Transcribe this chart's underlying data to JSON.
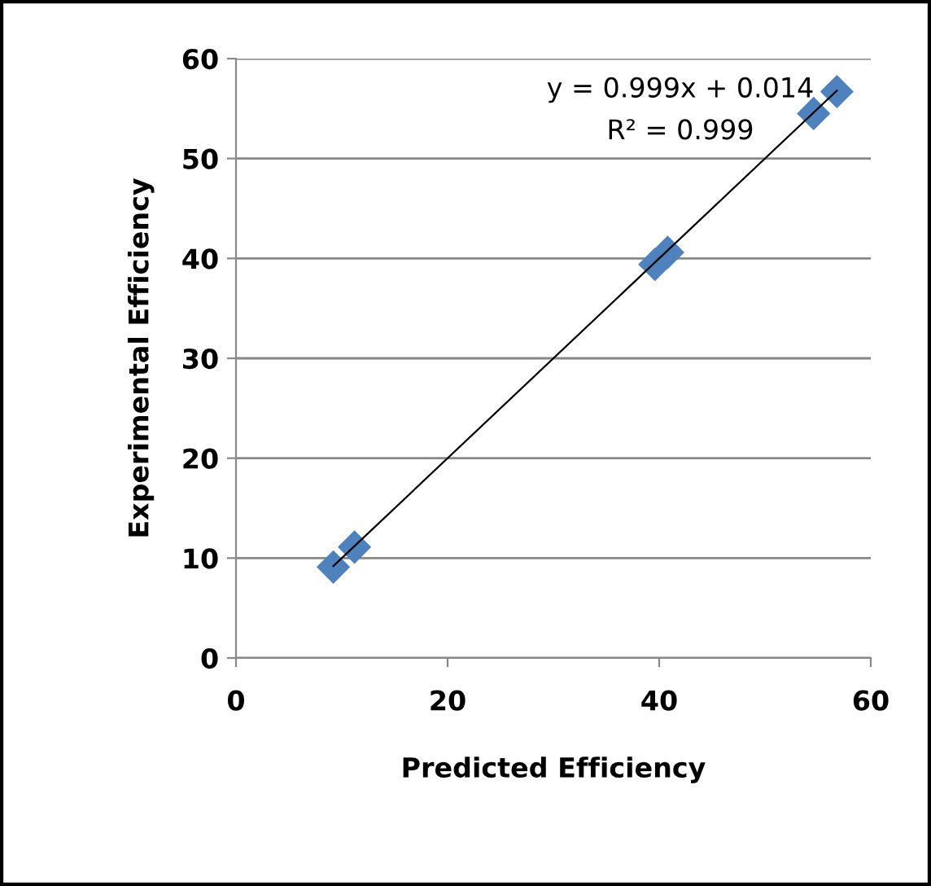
{
  "chart_data": {
    "type": "scatter",
    "xlabel": "Predicted Efficiency",
    "ylabel": "Experimental Efficiency",
    "annotations": [
      "y = 0.999x + 0.014",
      "R² = 0.999"
    ],
    "series": [
      {
        "color": "#4f81bd",
        "marker": "diamond",
        "x": [
          9.2,
          11.2,
          39.6,
          40.8,
          54.6,
          56.8
        ],
        "values": [
          9.1,
          11.1,
          39.4,
          40.6,
          54.5,
          56.7
        ]
      },
      {
        "type": "line",
        "color": "#000000",
        "marker": "none",
        "x": [
          9.2,
          56.8
        ],
        "values": [
          9.2,
          56.8
        ]
      }
    ],
    "xlim": [
      0,
      60
    ],
    "ylim": [
      0,
      60
    ],
    "xticks": [
      0,
      20,
      40,
      60
    ],
    "yticks": [
      0,
      10,
      20,
      30,
      40,
      50,
      60
    ],
    "grid": "y",
    "legend": false
  }
}
